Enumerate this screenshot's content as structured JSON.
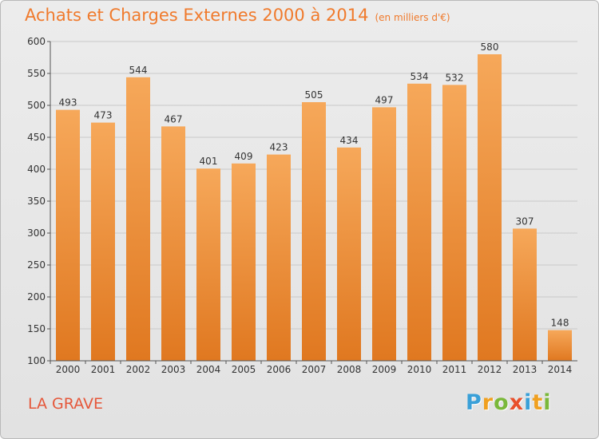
{
  "title": {
    "main": "Achats et Charges Externes 2000 à 2014",
    "unit": "(en milliers d'€)"
  },
  "place_label": "LA GRAVE",
  "logo": {
    "text": "Proxiti",
    "letters": [
      {
        "ch": "P",
        "color": "#3aa0d8"
      },
      {
        "ch": "r",
        "color": "#f0a020"
      },
      {
        "ch": "o",
        "color": "#7ab83a"
      },
      {
        "ch": "x",
        "color": "#e8502c"
      },
      {
        "ch": "i",
        "color": "#3aa0d8"
      },
      {
        "ch": "t",
        "color": "#f0a020"
      },
      {
        "ch": "i",
        "color": "#7ab83a"
      }
    ]
  },
  "colors": {
    "bar_top": "#f6a85a",
    "bar_bottom": "#e07820",
    "axis": "#555555",
    "grid": "#c9c9c9",
    "text": "#333333",
    "title": "#f07a2c",
    "place": "#e5573a"
  },
  "chart_data": {
    "type": "bar",
    "categories": [
      "2000",
      "2001",
      "2002",
      "2003",
      "2004",
      "2005",
      "2006",
      "2007",
      "2008",
      "2009",
      "2010",
      "2011",
      "2012",
      "2013",
      "2014"
    ],
    "values": [
      493,
      473,
      544,
      467,
      401,
      409,
      423,
      505,
      434,
      497,
      534,
      532,
      580,
      307,
      148
    ],
    "title": "Achats et Charges Externes 2000 à 2014",
    "subtitle": "(en milliers d'€)",
    "xlabel": "",
    "ylabel": "",
    "ylim": [
      100,
      600
    ],
    "yticks": [
      100,
      150,
      200,
      250,
      300,
      350,
      400,
      450,
      500,
      550,
      600
    ],
    "grid": true,
    "legend": "none"
  }
}
